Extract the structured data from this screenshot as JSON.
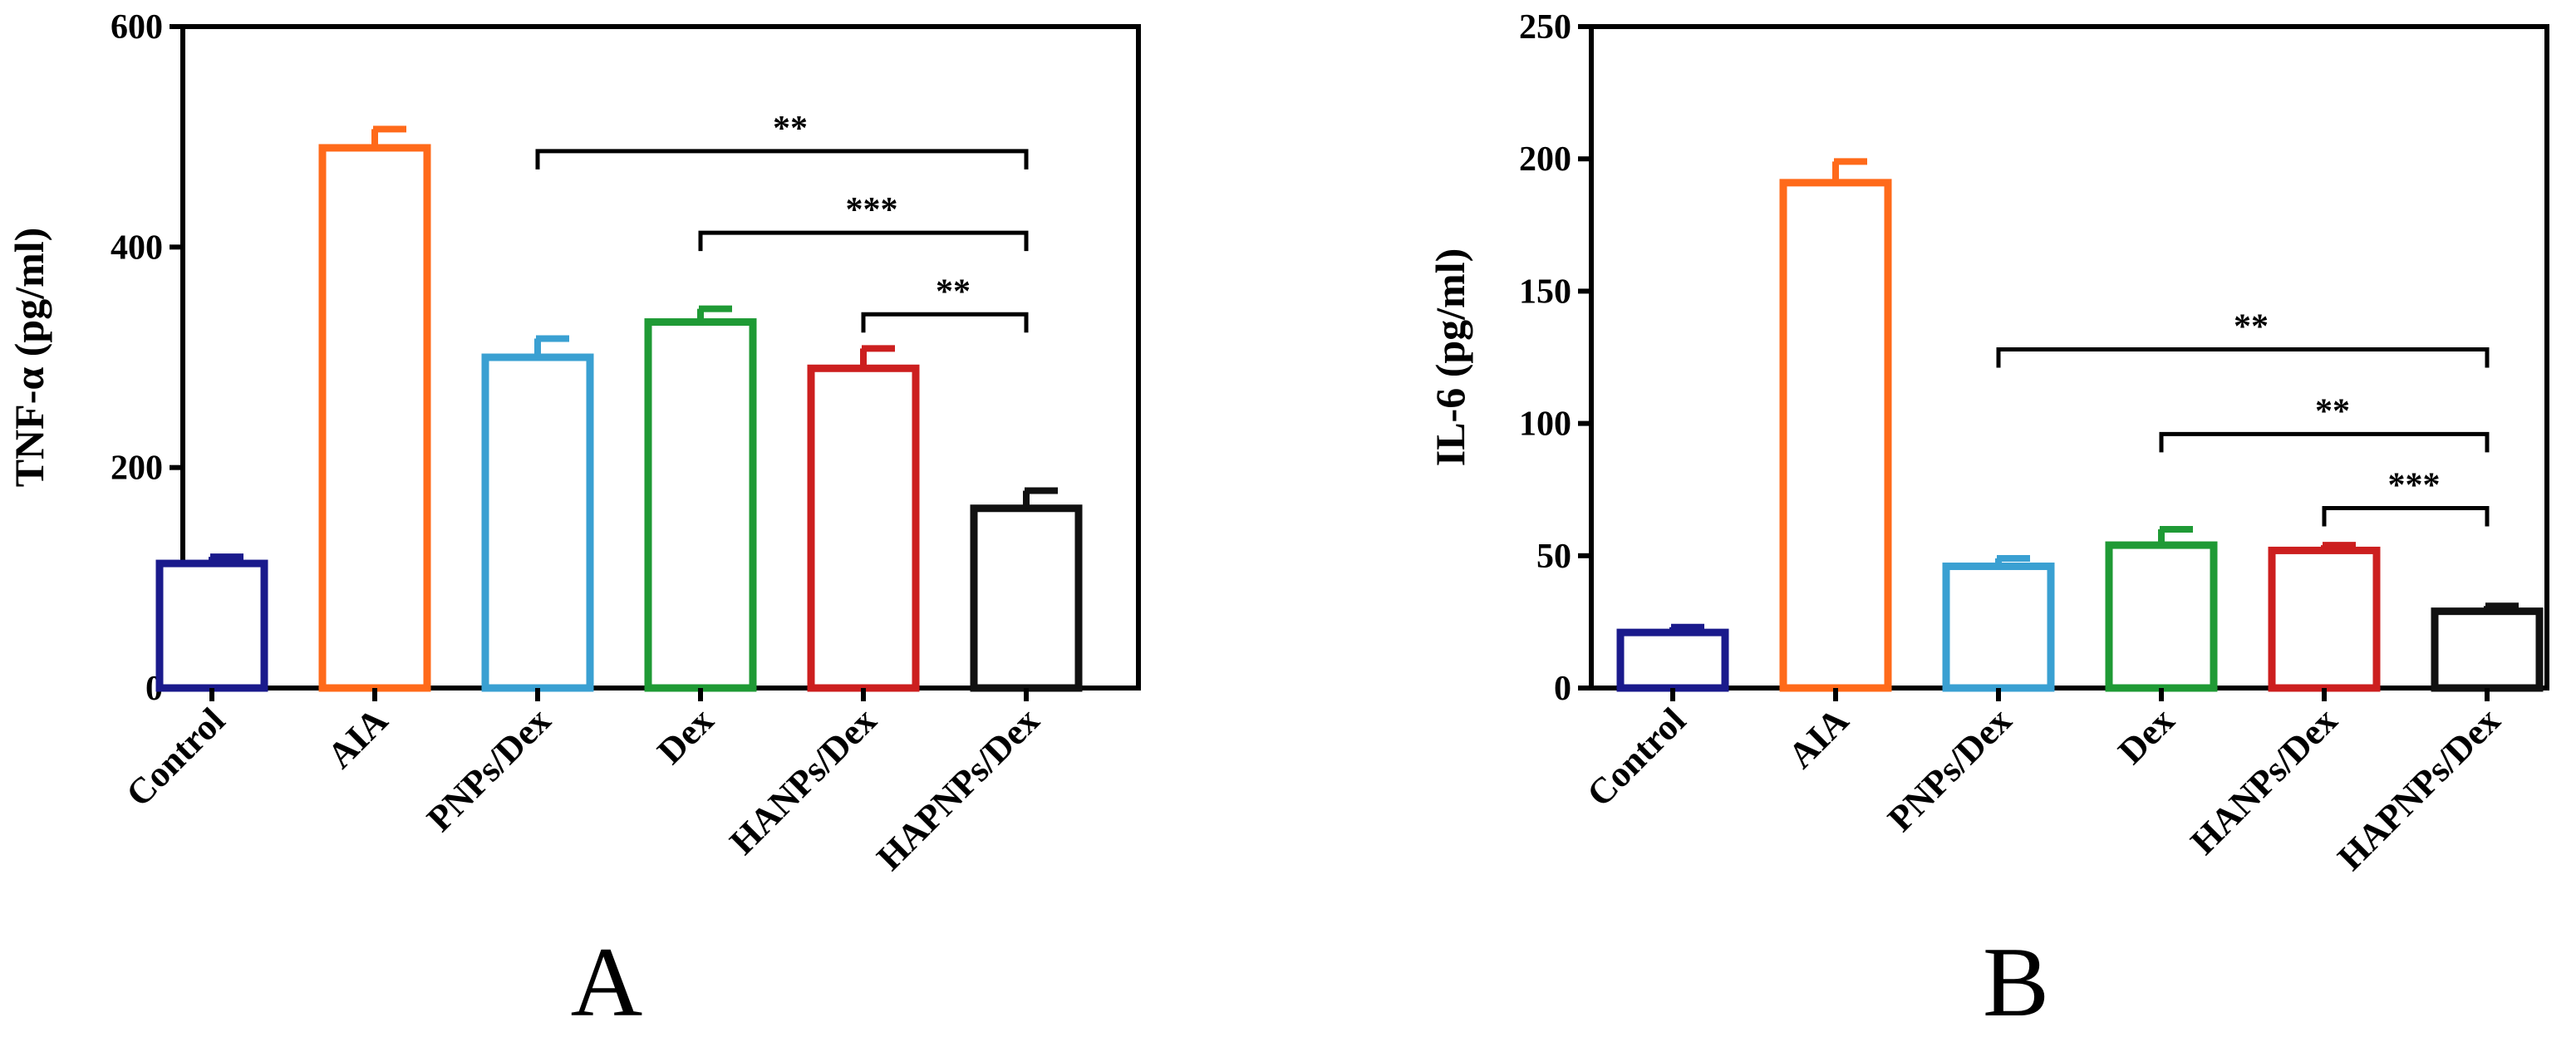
{
  "chart_data": [
    {
      "type": "bar",
      "panel_label": "A",
      "ylabel": "TNF-α (pg/ml)",
      "ylim": [
        0,
        600
      ],
      "yticks": [
        "0",
        "200",
        "400",
        "600"
      ],
      "categories": [
        "Control",
        "AIA",
        "PNPs/Dex",
        "Dex",
        "HANPs/Dex",
        "HAPNPs/Dex"
      ],
      "values": [
        113,
        490,
        300,
        332,
        290,
        163
      ],
      "errors": [
        6,
        17,
        17,
        12,
        18,
        16
      ],
      "colors": [
        "#1a1a8c",
        "#ff6a1a",
        "#3aa0d2",
        "#1f9a35",
        "#cc1f1f",
        "#111111"
      ],
      "significance": [
        {
          "from": 2,
          "to": 5,
          "label": "**",
          "y": 487
        },
        {
          "from": 3,
          "to": 5,
          "label": "***",
          "y": 413
        },
        {
          "from": 4,
          "to": 5,
          "label": "**",
          "y": 339
        }
      ]
    },
    {
      "type": "bar",
      "panel_label": "B",
      "ylabel": "IL-6 (pg/ml)",
      "ylim": [
        0,
        250
      ],
      "yticks": [
        "0",
        "50",
        "100",
        "150",
        "200",
        "250"
      ],
      "categories": [
        "Control",
        "AIA",
        "PNPs/Dex",
        "Dex",
        "HANPs/Dex",
        "HAPNPs/Dex"
      ],
      "values": [
        21,
        191,
        46,
        54,
        52,
        29
      ],
      "errors": [
        2,
        8,
        3,
        6,
        2,
        2
      ],
      "colors": [
        "#1a1a8c",
        "#ff6a1a",
        "#3aa0d2",
        "#1f9a35",
        "#cc1f1f",
        "#111111"
      ],
      "significance": [
        {
          "from": 2,
          "to": 5,
          "label": "**",
          "y": 128
        },
        {
          "from": 3,
          "to": 5,
          "label": "**",
          "y": 96
        },
        {
          "from": 4,
          "to": 5,
          "label": "***",
          "y": 68
        }
      ]
    }
  ]
}
